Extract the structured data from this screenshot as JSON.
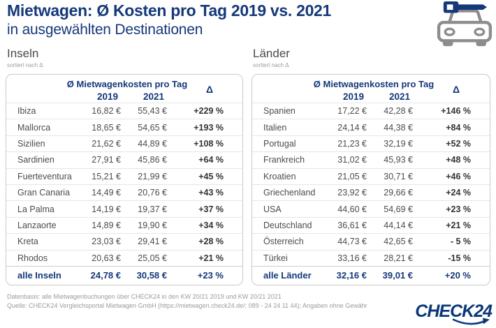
{
  "page": {
    "title": "Mietwagen: Ø Kosten pro Tag 2019 vs. 2021",
    "subtitle": "in ausgewählten Destinationen"
  },
  "colors": {
    "brand_navy": "#14387a",
    "logo_blue": "#0b3878",
    "row_text": "#4c4c4c",
    "delta_text": "#333333",
    "muted_gray": "#9b9b9b",
    "icon_gray": "#8d8d8d"
  },
  "icons": {
    "car_key": "car-with-key-icon",
    "logo_swoosh": "swoosh-arrow-icon"
  },
  "chart_data": [
    {
      "type": "table",
      "title": "Inseln",
      "sort_note": "sortiert nach Δ",
      "group_header": "Ø Mietwagenkosten pro Tag",
      "columns": [
        "2019",
        "2021",
        "Δ"
      ],
      "rows": [
        [
          "Ibiza",
          "16,82 €",
          "55,43 €",
          "+229 %"
        ],
        [
          "Mallorca",
          "18,65 €",
          "54,65 €",
          "+193 %"
        ],
        [
          "Sizilien",
          "21,62 €",
          "44,89 €",
          "+108 %"
        ],
        [
          "Sardinien",
          "27,91 €",
          "45,86 €",
          "+64 %"
        ],
        [
          "Fuerteventura",
          "15,21 €",
          "21,99 €",
          "+45 %"
        ],
        [
          "Gran Canaria",
          "14,49 €",
          "20,76 €",
          "+43 %"
        ],
        [
          "La Palma",
          "14,19 €",
          "19,37 €",
          "+37 %"
        ],
        [
          "Lanzaorte",
          "14,89 €",
          "19,90 €",
          "+34 %"
        ],
        [
          "Kreta",
          "23,03 €",
          "29,41 €",
          "+28 %"
        ],
        [
          "Rhodos",
          "20,63 €",
          "25,05 €",
          "+21 %"
        ]
      ],
      "total": [
        "alle Inseln",
        "24,78 €",
        "30,58 €",
        "+23 %"
      ]
    },
    {
      "type": "table",
      "title": "Länder",
      "sort_note": "sortiert nach Δ",
      "group_header": "Ø Mietwagenkosten pro Tag",
      "columns": [
        "2019",
        "2021",
        "Δ"
      ],
      "rows": [
        [
          "Spanien",
          "17,22 €",
          "42,28 €",
          "+146 %"
        ],
        [
          "Italien",
          "24,14 €",
          "44,38 €",
          "+84 %"
        ],
        [
          "Portugal",
          "21,23 €",
          "32,19 €",
          "+52 %"
        ],
        [
          "Frankreich",
          "31,02 €",
          "45,93 €",
          "+48 %"
        ],
        [
          "Kroatien",
          "21,05 €",
          "30,71 €",
          "+46 %"
        ],
        [
          "Griechenland",
          "23,92 €",
          "29,66 €",
          "+24 %"
        ],
        [
          "USA",
          "44,60 €",
          "54,69 €",
          "+23 %"
        ],
        [
          "Deutschland",
          "36,61 €",
          "44,14 €",
          "+21 %"
        ],
        [
          "Österreich",
          "44,73 €",
          "42,65 €",
          "- 5 %"
        ],
        [
          "Türkei",
          "33,16 €",
          "28,21 €",
          "-15 %"
        ]
      ],
      "total": [
        "alle Länder",
        "32,16 €",
        "39,01 €",
        "+20 %"
      ]
    }
  ],
  "footer": {
    "line1": "Datenbasis: alle Mietwagenbuchungen über CHECK24 in den KW 20/21 2019 und KW 20/21 2021",
    "line2": "Quelle: CHECK24 Vergleichsportal Mietwagen GmbH (https://mietwagen.check24.de/; 089 - 24 24 11 44); Angaben ohne Gewähr",
    "logo_text": "CHECK24"
  }
}
